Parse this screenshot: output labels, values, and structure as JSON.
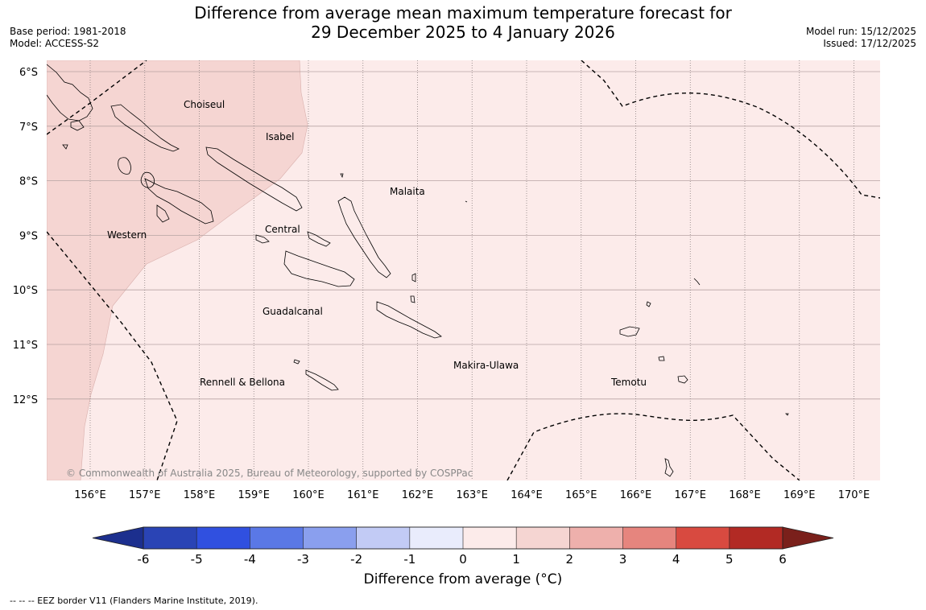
{
  "title": {
    "line1": "Difference from average mean maximum temperature forecast for",
    "line2": "29 December 2025 to 4 January 2026"
  },
  "meta_left": {
    "base_period": "Base period: 1981-2018",
    "model": "Model: ACCESS-S2"
  },
  "meta_right": {
    "model_run": "Model run: 15/12/2025",
    "issued": "Issued: 17/12/2025"
  },
  "map": {
    "lat_labels": [
      "6°S",
      "7°S",
      "8°S",
      "9°S",
      "10°S",
      "11°S",
      "12°S"
    ],
    "lon_labels": [
      "156°E",
      "157°E",
      "158°E",
      "159°E",
      "160°E",
      "161°E",
      "162°E",
      "163°E",
      "164°E",
      "165°E",
      "166°E",
      "167°E",
      "168°E",
      "169°E",
      "170°E"
    ],
    "regions": [
      "Choiseul",
      "Isabel",
      "Malaita",
      "Western",
      "Central",
      "Guadalcanal",
      "Makira-Ulawa",
      "Rennell & Bellona",
      "Temotu"
    ],
    "copyright": "© Commonwealth of Australia 2025, Bureau of Meteorology, supported by COSPPac"
  },
  "colorbar": {
    "ticks": [
      "-6",
      "-5",
      "-4",
      "-3",
      "-2",
      "-1",
      "0",
      "1",
      "2",
      "3",
      "4",
      "5",
      "6"
    ],
    "colors": [
      "#1c2f8e",
      "#2a44b5",
      "#3050e0",
      "#5a78e6",
      "#8a9fee",
      "#c2cbf5",
      "#e9ecfc",
      "#fcebea",
      "#f5d5d2",
      "#eeb0ac",
      "#e6857e",
      "#d84a40",
      "#b22a24",
      "#7a201b"
    ],
    "label": "Difference from average (°C)"
  },
  "footnote": "--  --  -- EEZ border V11 (Flanders Marine Institute, 2019)."
}
